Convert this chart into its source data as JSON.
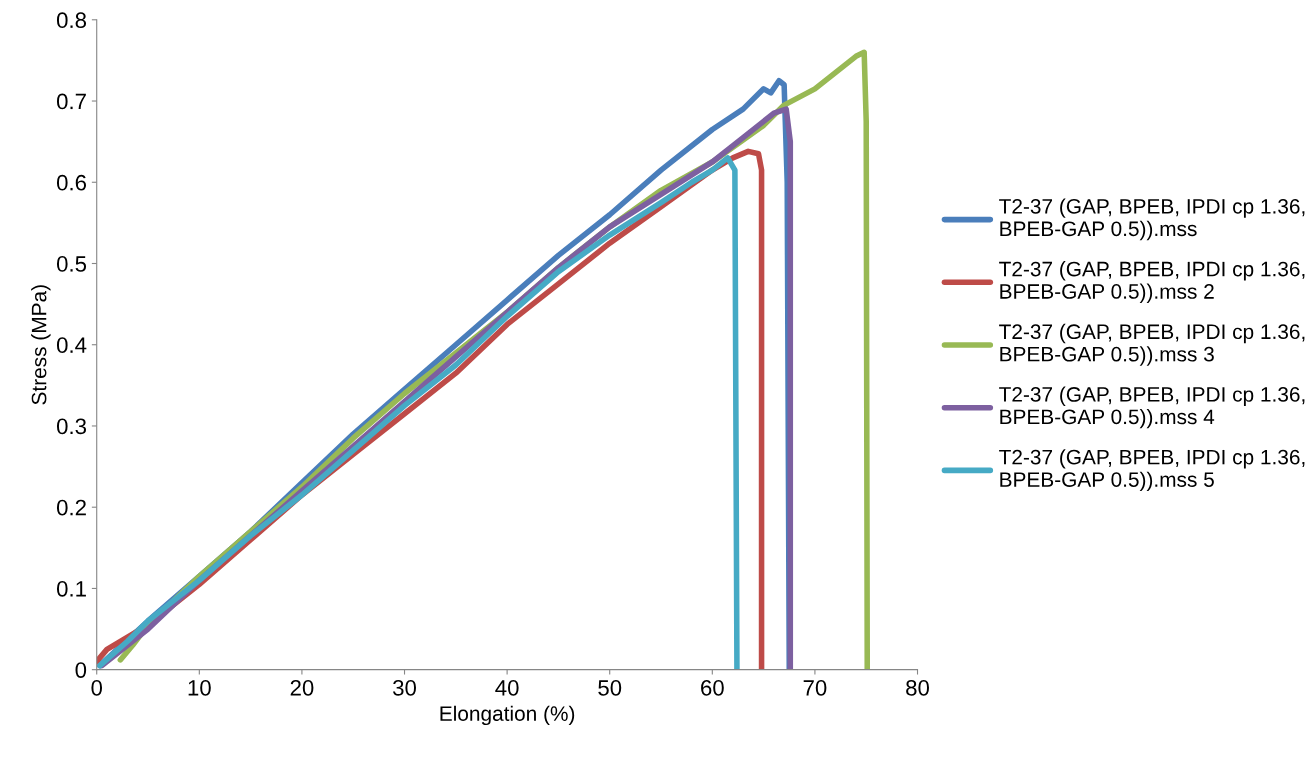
{
  "chart_data": {
    "type": "line",
    "xlabel": "Elongation (%)",
    "ylabel": "Stress (MPa)",
    "xlim": [
      0,
      80
    ],
    "xticks": [
      0,
      10,
      20,
      30,
      40,
      50,
      60,
      70,
      80
    ],
    "ylim": [
      0,
      0.8
    ],
    "yticks": [
      0,
      0.1,
      0.2,
      0.3,
      0.4,
      0.5,
      0.6,
      0.7,
      0.8
    ],
    "grid": false,
    "legend": "right",
    "marker": "none",
    "line_style": "solid",
    "series": [
      {
        "name": "T2-37 (GAP, BPEB, IPDI cp 1.36,\nBPEB-GAP 0.5)).mss",
        "color": "#4a7ebb",
        "x": [
          0.3,
          5,
          10,
          15,
          20,
          25,
          30,
          35,
          40,
          45,
          50,
          55,
          60,
          63,
          65,
          65.7,
          66.5,
          67,
          67.3,
          67.5
        ],
        "values": [
          0.005,
          0.06,
          0.115,
          0.17,
          0.23,
          0.29,
          0.345,
          0.4,
          0.455,
          0.51,
          0.56,
          0.615,
          0.665,
          0.69,
          0.715,
          0.71,
          0.725,
          0.72,
          0.6,
          0
        ]
      },
      {
        "name": "T2-37 (GAP, BPEB, IPDI cp 1.36,\nBPEB-GAP 0.5)).mss 2",
        "color": "#be4b48",
        "x": [
          0,
          1,
          5,
          10,
          15,
          20,
          25,
          30,
          35,
          40,
          45,
          50,
          55,
          60,
          62,
          63.5,
          64.5,
          64.8,
          64.8
        ],
        "values": [
          0.01,
          0.025,
          0.055,
          0.105,
          0.16,
          0.215,
          0.265,
          0.315,
          0.365,
          0.425,
          0.475,
          0.525,
          0.57,
          0.615,
          0.63,
          0.638,
          0.635,
          0.615,
          0
        ]
      },
      {
        "name": "T2-37 (GAP, BPEB, IPDI cp 1.36,\nBPEB-GAP 0.5)).mss 3",
        "color": "#98b954",
        "x": [
          2.3,
          3.5,
          5,
          10,
          15,
          20,
          25,
          30,
          35,
          40,
          45,
          50,
          55,
          60,
          65,
          67,
          70,
          72,
          74,
          74.8,
          75,
          75.1
        ],
        "values": [
          0.012,
          0.03,
          0.055,
          0.115,
          0.17,
          0.225,
          0.285,
          0.34,
          0.39,
          0.44,
          0.495,
          0.545,
          0.59,
          0.625,
          0.67,
          0.695,
          0.715,
          0.735,
          0.755,
          0.76,
          0.675,
          0
        ]
      },
      {
        "name": "T2-37 (GAP, BPEB, IPDI cp 1.36,\nBPEB-GAP 0.5)).mss 4",
        "color": "#7d60a0",
        "x": [
          0.5,
          5,
          10,
          15,
          20,
          25,
          30,
          35,
          40,
          45,
          50,
          55,
          60,
          63,
          65,
          66,
          67.2,
          67.6,
          67.6
        ],
        "values": [
          0.005,
          0.05,
          0.11,
          0.165,
          0.22,
          0.275,
          0.33,
          0.385,
          0.44,
          0.495,
          0.545,
          0.585,
          0.625,
          0.655,
          0.675,
          0.685,
          0.69,
          0.65,
          0
        ]
      },
      {
        "name": "T2-37 (GAP, BPEB, IPDI cp 1.36,\nBPEB-GAP 0.5)).mss 5",
        "color": "#46aac5",
        "x": [
          0.3,
          3,
          5,
          10,
          15,
          20,
          25,
          30,
          35,
          40,
          45,
          50,
          55,
          58,
          60,
          61.5,
          62.2,
          62.4
        ],
        "values": [
          0.005,
          0.035,
          0.06,
          0.11,
          0.165,
          0.215,
          0.27,
          0.325,
          0.375,
          0.435,
          0.49,
          0.535,
          0.575,
          0.6,
          0.615,
          0.63,
          0.615,
          0
        ]
      }
    ]
  }
}
